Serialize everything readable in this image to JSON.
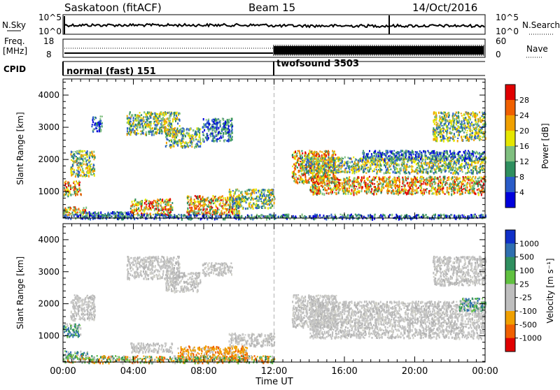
{
  "header": {
    "title": "Saskatoon (fitACF)",
    "beam": "Beam 15",
    "date": "14/Oct/2016"
  },
  "strip_nsky": {
    "label": "N.Sky",
    "tick_top": "10^5",
    "tick_bottom": "10^0",
    "right_label": "N.Search",
    "right_tick_top": "10^5",
    "right_tick_bottom": "10^0"
  },
  "strip_freq": {
    "label_line1": "Freq.",
    "label_line2": "[MHz]",
    "tick_top": "18",
    "tick_bottom": "8",
    "right_label": "Nave",
    "right_tick_top": "60",
    "right_tick_bottom": "0"
  },
  "strip_cpid": {
    "label": "CPID",
    "modes": [
      {
        "name": "normal (fast) 151",
        "start_hour": 0
      },
      {
        "name": "twofsound 3503",
        "start_hour": 12
      }
    ]
  },
  "chart_data": [
    {
      "type": "heatmap",
      "panel": "power",
      "ylabel": "Slant Range [km]",
      "xlabel": "Time UT",
      "xlim_hours": [
        0,
        24
      ],
      "ylim": [
        180,
        4500
      ],
      "yticks": [
        1000,
        2000,
        3000,
        4000
      ],
      "xticks": [
        "00:00",
        "04:00",
        "08:00",
        "12:00",
        "16:00",
        "20:00",
        "00:00"
      ],
      "colorbar_label": "Power [dB]",
      "colorbar_ticks": [
        "4",
        "8",
        "12",
        "16",
        "20",
        "24",
        "28"
      ],
      "colorbar_colors": [
        "#0000dc",
        "#2a5cc8",
        "#2f8f5f",
        "#7fbf7f",
        "#e6e600",
        "#f0a000",
        "#f06000",
        "#e00000"
      ],
      "dashed_line_hour": 12,
      "echo_regions": [
        {
          "t0": 0.0,
          "t1": 1.4,
          "r0": 300,
          "r1": 550,
          "level": "high"
        },
        {
          "t0": 0.0,
          "t1": 1.0,
          "r0": 900,
          "r1": 1350,
          "level": "high"
        },
        {
          "t0": 0.4,
          "t1": 1.8,
          "r0": 1500,
          "r1": 2300,
          "level": "mid"
        },
        {
          "t0": 1.0,
          "t1": 4.0,
          "r0": 200,
          "r1": 400,
          "level": "low"
        },
        {
          "t0": 1.6,
          "t1": 2.2,
          "r0": 2900,
          "r1": 3400,
          "level": "low"
        },
        {
          "t0": 3.8,
          "t1": 6.2,
          "r0": 300,
          "r1": 800,
          "level": "high"
        },
        {
          "t0": 3.6,
          "t1": 6.6,
          "r0": 2800,
          "r1": 3500,
          "level": "mid"
        },
        {
          "t0": 5.8,
          "t1": 7.8,
          "r0": 2400,
          "r1": 3000,
          "level": "mid"
        },
        {
          "t0": 7.0,
          "t1": 10.0,
          "r0": 300,
          "r1": 900,
          "level": "high"
        },
        {
          "t0": 7.9,
          "t1": 9.6,
          "r0": 2600,
          "r1": 3300,
          "level": "low"
        },
        {
          "t0": 9.4,
          "t1": 12.0,
          "r0": 500,
          "r1": 1100,
          "level": "mid"
        },
        {
          "t0": 13.0,
          "t1": 15.5,
          "r0": 1300,
          "r1": 2300,
          "level": "high"
        },
        {
          "t0": 14.0,
          "t1": 24.0,
          "r0": 950,
          "r1": 1500,
          "level": "high"
        },
        {
          "t0": 13.5,
          "t1": 24.0,
          "r0": 1600,
          "r1": 2100,
          "level": "mid"
        },
        {
          "t0": 17.0,
          "t1": 24.0,
          "r0": 2000,
          "r1": 2300,
          "level": "low"
        },
        {
          "t0": 21.0,
          "t1": 24.0,
          "r0": 2600,
          "r1": 3500,
          "level": "mid"
        },
        {
          "t0": 0.0,
          "t1": 24.0,
          "r0": 180,
          "r1": 320,
          "level": "low"
        }
      ]
    },
    {
      "type": "heatmap",
      "panel": "velocity",
      "ylabel": "Slant Range [km]",
      "xlabel": "Time UT",
      "xlim_hours": [
        0,
        24
      ],
      "ylim": [
        180,
        4500
      ],
      "yticks": [
        1000,
        2000,
        3000,
        4000
      ],
      "xticks": [
        "00:00",
        "04:00",
        "08:00",
        "12:00",
        "16:00",
        "20:00",
        "00:00"
      ],
      "colorbar_label": "Velocity [m s⁻¹]",
      "colorbar_ticks": [
        "1000",
        "500",
        "100",
        "25",
        "-25",
        "-100",
        "-500",
        "-1000"
      ],
      "colorbar_colors": [
        "#1030c8",
        "#2f6fb0",
        "#2f8f5f",
        "#60c040",
        "#bebebe",
        "#bebebe",
        "#f0a000",
        "#f06000",
        "#e00000"
      ],
      "dashed_line_hour": 12,
      "echo_regions": [
        {
          "t0": 0.0,
          "t1": 1.4,
          "r0": 300,
          "r1": 550,
          "level": "pos"
        },
        {
          "t0": 0.0,
          "t1": 1.0,
          "r0": 1000,
          "r1": 1400,
          "level": "pos"
        },
        {
          "t0": 0.4,
          "t1": 1.8,
          "r0": 1500,
          "r1": 2300,
          "level": "zero"
        },
        {
          "t0": 3.8,
          "t1": 6.2,
          "r0": 500,
          "r1": 800,
          "level": "zero"
        },
        {
          "t0": 3.6,
          "t1": 6.6,
          "r0": 2800,
          "r1": 3500,
          "level": "zero"
        },
        {
          "t0": 5.8,
          "t1": 7.8,
          "r0": 2400,
          "r1": 3000,
          "level": "zero"
        },
        {
          "t0": 6.5,
          "t1": 10.5,
          "r0": 250,
          "r1": 700,
          "level": "neg"
        },
        {
          "t0": 7.9,
          "t1": 9.6,
          "r0": 2900,
          "r1": 3300,
          "level": "zero"
        },
        {
          "t0": 9.4,
          "t1": 12.0,
          "r0": 700,
          "r1": 1100,
          "level": "zero"
        },
        {
          "t0": 13.0,
          "t1": 15.5,
          "r0": 1300,
          "r1": 2300,
          "level": "zero"
        },
        {
          "t0": 14.0,
          "t1": 24.0,
          "r0": 950,
          "r1": 2100,
          "level": "zero"
        },
        {
          "t0": 21.0,
          "t1": 24.0,
          "r0": 2600,
          "r1": 3500,
          "level": "zero"
        },
        {
          "t0": 22.5,
          "t1": 24.0,
          "r0": 1800,
          "r1": 2200,
          "level": "pos"
        },
        {
          "t0": 0.0,
          "t1": 12.0,
          "r0": 180,
          "r1": 400,
          "level": "mixed"
        }
      ]
    }
  ]
}
